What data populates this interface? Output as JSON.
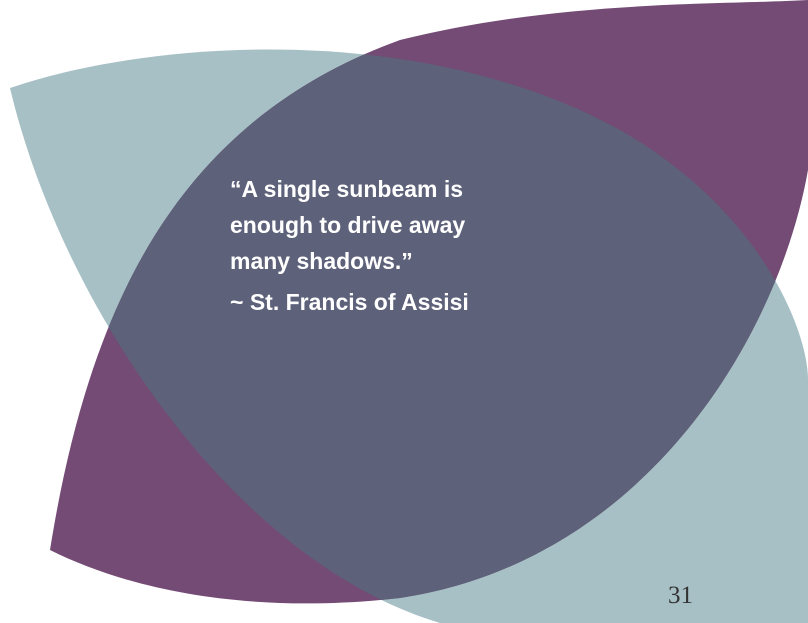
{
  "slide": {
    "quote_lines": [
      "“A single sunbeam is",
      "enough to drive away",
      "many shadows.”"
    ],
    "attribution": "~ St. Francis of Assisi",
    "page_number": "31"
  }
}
